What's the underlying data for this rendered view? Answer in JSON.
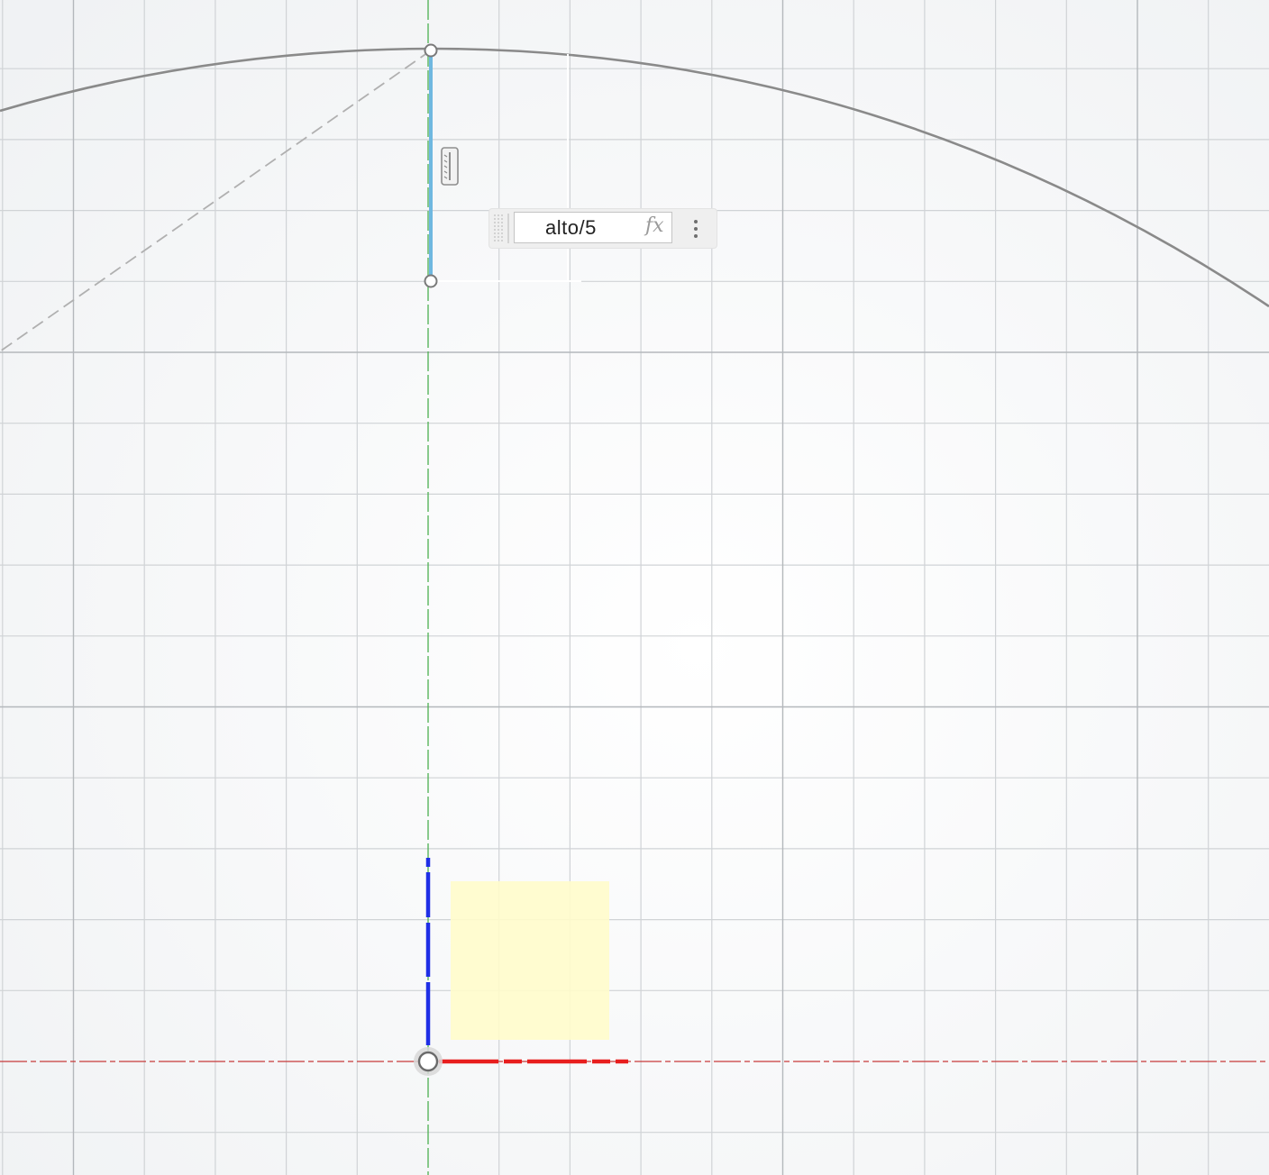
{
  "dimension_input": {
    "value": "alto/5",
    "fx_label": "fx",
    "more_icon": "vertical-ellipsis-icon"
  },
  "icons": {
    "vertical_constraint": "vertical-constraint-icon",
    "origin": "origin-point-icon"
  },
  "colors": {
    "background": "#f6f7f8",
    "grid_minor": "#d0d3d6",
    "grid_major": "#aeb2b6",
    "sketch_curve": "#8a8a8a",
    "selected_line": "#6fb8e0",
    "x_axis": "#e81e1e",
    "y_axis_2d": "#1f2fe6",
    "z_axis": "#4caf50",
    "origin_plane_highlight": "#fffccb"
  }
}
